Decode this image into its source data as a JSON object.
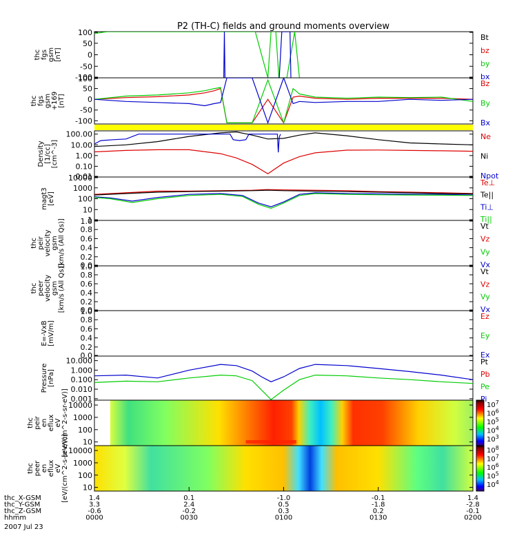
{
  "title": "P2 (TH-C) fields and ground moments overview",
  "colors": {
    "black": "#000000",
    "red": "#dd0000",
    "green": "#00cc00",
    "blue": "#0000cc",
    "yellow": "#ffff00",
    "frame": "#000000"
  },
  "chart_data": [
    {
      "type": "line",
      "panel": "fgs",
      "ylabel": [
        "thc",
        "fgs",
        "gsm",
        "[nT]"
      ],
      "yticks": [
        "100",
        "50",
        "0",
        "-50",
        "-100"
      ],
      "ylim": [
        -100,
        100
      ],
      "legend": [
        {
          "name": "Bt",
          "color": "#000000"
        },
        {
          "name": "bz",
          "color": "#dd0000"
        },
        {
          "name": "by",
          "color": "#00cc00"
        },
        {
          "name": "bx",
          "color": "#0000cc"
        }
      ],
      "series": [
        {
          "name": "by",
          "x": [
            0,
            4,
            51,
            55,
            56,
            57.5,
            58.5,
            61,
            63.5,
            65
          ],
          "y": [
            92,
            100,
            100,
            -100,
            100,
            100,
            -100,
            -100,
            100,
            -100
          ]
        },
        {
          "name": "bx",
          "x": [
            41,
            41.2,
            41.4,
            58.6,
            59.4,
            60.2,
            62,
            62.3
          ],
          "y": [
            -100,
            100,
            -100,
            -100,
            100,
            100,
            100,
            -100
          ]
        }
      ]
    },
    {
      "type": "line",
      "panel": "fgl",
      "ylabel": [
        "thc",
        "fgs",
        "gsm",
        "+169",
        "[nT]"
      ],
      "yticks": [
        "100",
        "50",
        "0",
        "-50",
        "-100"
      ],
      "ylim": [
        -115,
        100
      ],
      "legend": [
        {
          "name": "Bz",
          "color": "#dd0000"
        },
        {
          "name": "By",
          "color": "#00cc00"
        },
        {
          "name": "Bx",
          "color": "#0000cc"
        }
      ],
      "series": [
        {
          "name": "Bz",
          "x": [
            0,
            10,
            20,
            30,
            35,
            38,
            40,
            42,
            50,
            55,
            60,
            63,
            65,
            70,
            80,
            90,
            100,
            110,
            120
          ],
          "y": [
            0,
            8,
            12,
            20,
            30,
            40,
            50,
            -110,
            -110,
            0,
            -110,
            10,
            15,
            5,
            0,
            5,
            5,
            5,
            0
          ]
        },
        {
          "name": "By",
          "x": [
            0,
            10,
            20,
            30,
            35,
            38,
            40,
            42,
            50,
            55,
            60,
            63,
            65,
            70,
            80,
            90,
            100,
            110,
            120
          ],
          "y": [
            0,
            15,
            20,
            30,
            40,
            50,
            55,
            -110,
            -110,
            90,
            -110,
            50,
            25,
            10,
            5,
            10,
            8,
            10,
            -10
          ]
        },
        {
          "name": "Bx",
          "x": [
            0,
            10,
            20,
            30,
            35,
            38,
            40,
            42,
            50,
            55,
            60,
            63,
            65,
            70,
            80,
            90,
            100,
            110,
            120
          ],
          "y": [
            0,
            -10,
            -15,
            -20,
            -30,
            -20,
            -15,
            100,
            100,
            -110,
            100,
            -20,
            -10,
            -15,
            -10,
            -10,
            0,
            -5,
            0
          ]
        }
      ]
    },
    {
      "type": "line",
      "panel": "density",
      "yscale": "log",
      "ylabel": [
        "Density",
        "[1/cc]",
        "[cm^-3]"
      ],
      "yticks": [
        "100.00",
        "10.00",
        "1.00",
        "0.10",
        "0.01"
      ],
      "ylim": [
        0.01,
        200
      ],
      "legend": [
        {
          "name": "Ne",
          "color": "#dd0000"
        },
        {
          "name": "Ni",
          "color": "#000000"
        },
        {
          "name": "Npot",
          "color": "#0000cc"
        }
      ],
      "series": [
        {
          "name": "Ne",
          "x": [
            0,
            10,
            20,
            30,
            40,
            45,
            50,
            55,
            60,
            65,
            70,
            80,
            90,
            100,
            110,
            120
          ],
          "y": [
            2.2,
            3,
            3.5,
            3.5,
            1.5,
            0.6,
            0.15,
            0.02,
            0.2,
            0.8,
            1.8,
            3.2,
            3.3,
            3,
            2.8,
            2.5
          ]
        },
        {
          "name": "Ni",
          "x": [
            0,
            10,
            20,
            30,
            40,
            45,
            50,
            55,
            60,
            65,
            70,
            80,
            90,
            100,
            110,
            120
          ],
          "y": [
            7,
            10,
            20,
            60,
            130,
            160,
            80,
            35,
            40,
            80,
            130,
            70,
            30,
            15,
            12,
            10
          ]
        },
        {
          "name": "Npot",
          "x": [
            0,
            2,
            6,
            10,
            14,
            15,
            40,
            43,
            44,
            46,
            48,
            49,
            58,
            58.3,
            58.6,
            59
          ],
          "y": [
            12,
            25,
            30,
            35,
            100,
            100,
            100,
            100,
            30,
            25,
            30,
            100,
            100,
            2,
            50,
            100
          ]
        }
      ]
    },
    {
      "type": "line",
      "panel": "temperature",
      "yscale": "log",
      "ylabel": [
        "magt3",
        "[eV]"
      ],
      "yticks": [
        "10000",
        "1000",
        "100",
        "10",
        "1"
      ],
      "ylim": [
        1,
        10000
      ],
      "legend": [
        {
          "name": "Te⊥",
          "color": "#dd0000"
        },
        {
          "name": "Te||",
          "color": "#000000"
        },
        {
          "name": "Ti⊥",
          "color": "#0000cc"
        },
        {
          "name": "Ti||",
          "color": "#00cc00"
        }
      ],
      "series": [
        {
          "name": "Te⊥",
          "x": [
            0,
            10,
            20,
            30,
            40,
            50,
            55,
            60,
            70,
            80,
            90,
            100,
            110,
            120
          ],
          "y": [
            250,
            350,
            500,
            500,
            550,
            600,
            700,
            650,
            600,
            550,
            450,
            400,
            350,
            300
          ]
        },
        {
          "name": "Te||",
          "x": [
            0,
            10,
            20,
            30,
            40,
            50,
            55,
            60,
            70,
            80,
            90,
            100,
            110,
            120
          ],
          "y": [
            220,
            300,
            400,
            450,
            500,
            550,
            600,
            550,
            500,
            450,
            400,
            350,
            300,
            280
          ]
        },
        {
          "name": "Ti⊥",
          "x": [
            0,
            5,
            12,
            20,
            30,
            40,
            47,
            52,
            56,
            60,
            65,
            70,
            80,
            90,
            100,
            110,
            120
          ],
          "y": [
            150,
            120,
            60,
            130,
            250,
            300,
            200,
            40,
            18,
            50,
            250,
            350,
            300,
            280,
            260,
            250,
            220
          ]
        },
        {
          "name": "Ti||",
          "x": [
            0,
            5,
            12,
            20,
            30,
            40,
            47,
            52,
            56,
            60,
            65,
            70,
            80,
            90,
            100,
            110,
            120
          ],
          "y": [
            130,
            100,
            45,
            100,
            200,
            250,
            160,
            30,
            13,
            40,
            200,
            300,
            250,
            230,
            220,
            210,
            200
          ]
        }
      ]
    },
    {
      "type": "line",
      "panel": "ion velocity",
      "ylabel": [
        "thc",
        "peir",
        "velocity",
        "gsm",
        "[km/s (All Qs)]"
      ],
      "yticks": [
        "1.0",
        "0.8",
        "0.6",
        "0.4",
        "0.2",
        "0.0"
      ],
      "ylim": [
        0,
        1
      ],
      "legend": [
        {
          "name": "Vt",
          "color": "#000000"
        },
        {
          "name": "Vz",
          "color": "#dd0000"
        },
        {
          "name": "Vy",
          "color": "#00cc00"
        },
        {
          "name": "Vx",
          "color": "#0000cc"
        }
      ],
      "series": []
    },
    {
      "type": "line",
      "panel": "electron velocity",
      "ylabel": [
        "thc",
        "peer",
        "velocity",
        "gsm",
        "[km/s (All Qs)]"
      ],
      "yticks": [
        "1.0",
        "0.8",
        "0.6",
        "0.4",
        "0.2",
        "0.0"
      ],
      "ylim": [
        0,
        1
      ],
      "legend": [
        {
          "name": "Vt",
          "color": "#000000"
        },
        {
          "name": "Vz",
          "color": "#dd0000"
        },
        {
          "name": "Vy",
          "color": "#00cc00"
        },
        {
          "name": "Vx",
          "color": "#0000cc"
        }
      ],
      "series": []
    },
    {
      "type": "line",
      "panel": "efield",
      "ylabel": [
        "E=-VxB",
        "[mV/m]"
      ],
      "yticks": [
        "1.0",
        "0.8",
        "0.6",
        "0.4",
        "0.2",
        "0.0"
      ],
      "ylim": [
        0,
        1
      ],
      "legend": [
        {
          "name": "Ez",
          "color": "#dd0000"
        },
        {
          "name": "Ey",
          "color": "#00cc00"
        },
        {
          "name": "Ex",
          "color": "#0000cc"
        }
      ],
      "series": []
    },
    {
      "type": "line",
      "panel": "pressure",
      "yscale": "log",
      "ylabel": [
        "Pressure",
        "[nPa]"
      ],
      "yticks": [
        "10.000",
        "1.000",
        "0.100",
        "0.010",
        "0.001"
      ],
      "ylim": [
        0.0007,
        30
      ],
      "legend": [
        {
          "name": "Pt",
          "color": "#000000"
        },
        {
          "name": "Pb",
          "color": "#dd0000"
        },
        {
          "name": "Pe",
          "color": "#00cc00"
        },
        {
          "name": "Pi",
          "color": "#0000cc"
        }
      ],
      "series": [
        {
          "name": "Pi",
          "x": [
            0,
            10,
            20,
            30,
            40,
            45,
            50,
            53,
            56,
            60,
            65,
            70,
            80,
            90,
            100,
            110,
            120
          ],
          "y": [
            0.25,
            0.3,
            0.15,
            1,
            4,
            3,
            0.8,
            0.2,
            0.06,
            0.2,
            1.5,
            4,
            3,
            1.5,
            0.7,
            0.3,
            0.1
          ]
        },
        {
          "name": "Pe",
          "x": [
            0,
            10,
            20,
            30,
            40,
            45,
            50,
            53,
            56,
            60,
            65,
            70,
            80,
            90,
            100,
            110,
            120
          ],
          "y": [
            0.05,
            0.07,
            0.06,
            0.15,
            0.3,
            0.25,
            0.08,
            0.008,
            0.0008,
            0.008,
            0.1,
            0.3,
            0.25,
            0.15,
            0.1,
            0.06,
            0.04
          ]
        }
      ]
    },
    {
      "type": "heatmap",
      "panel": "ion spectrogram",
      "yscale": "log",
      "ylabel": [
        "thc",
        "peir",
        "en",
        "eflux",
        "eV",
        "[eV/(cm^2-s-sr-eV)]"
      ],
      "yticks": [
        "10000",
        "1000",
        "100",
        "10"
      ],
      "ylim": [
        5,
        25000
      ],
      "colorbar_ticks": [
        "10^7",
        "10^6",
        "10^5",
        "10^4",
        "10^3"
      ]
    },
    {
      "type": "heatmap",
      "panel": "electron spectrogram",
      "yscale": "log",
      "ylabel": [
        "thc",
        "peer",
        "en",
        "eflux",
        "eV",
        "[eV/(cm^2-s-sr-eV)]"
      ],
      "yticks": [
        "10000",
        "1000",
        "100",
        "10"
      ],
      "ylim": [
        5,
        25000
      ],
      "colorbar_ticks": [
        "10^8",
        "10^7",
        "10^6",
        "10^5",
        "10^4"
      ]
    }
  ],
  "xaxis": {
    "range_minutes": [
      0,
      120
    ],
    "tick_minutes": [
      0,
      30,
      60,
      90,
      120
    ],
    "rows": [
      {
        "label": "thc_X-GSM",
        "values": [
          "1.4",
          "0.1",
          "-1.0",
          "-0.1",
          "1.4"
        ]
      },
      {
        "label": "thc_Y-GSM",
        "values": [
          "3.3",
          "2.4",
          "0.5",
          "-1.8",
          "-2.8"
        ]
      },
      {
        "label": "thc_Z-GSM",
        "values": [
          "-0.6",
          "-0.2",
          "0.3",
          "0.2",
          "-0.1"
        ]
      },
      {
        "label": "hhmm",
        "values": [
          "0000",
          "0030",
          "0100",
          "0130",
          "0200"
        ]
      }
    ],
    "date": "2007 Jul 23"
  }
}
